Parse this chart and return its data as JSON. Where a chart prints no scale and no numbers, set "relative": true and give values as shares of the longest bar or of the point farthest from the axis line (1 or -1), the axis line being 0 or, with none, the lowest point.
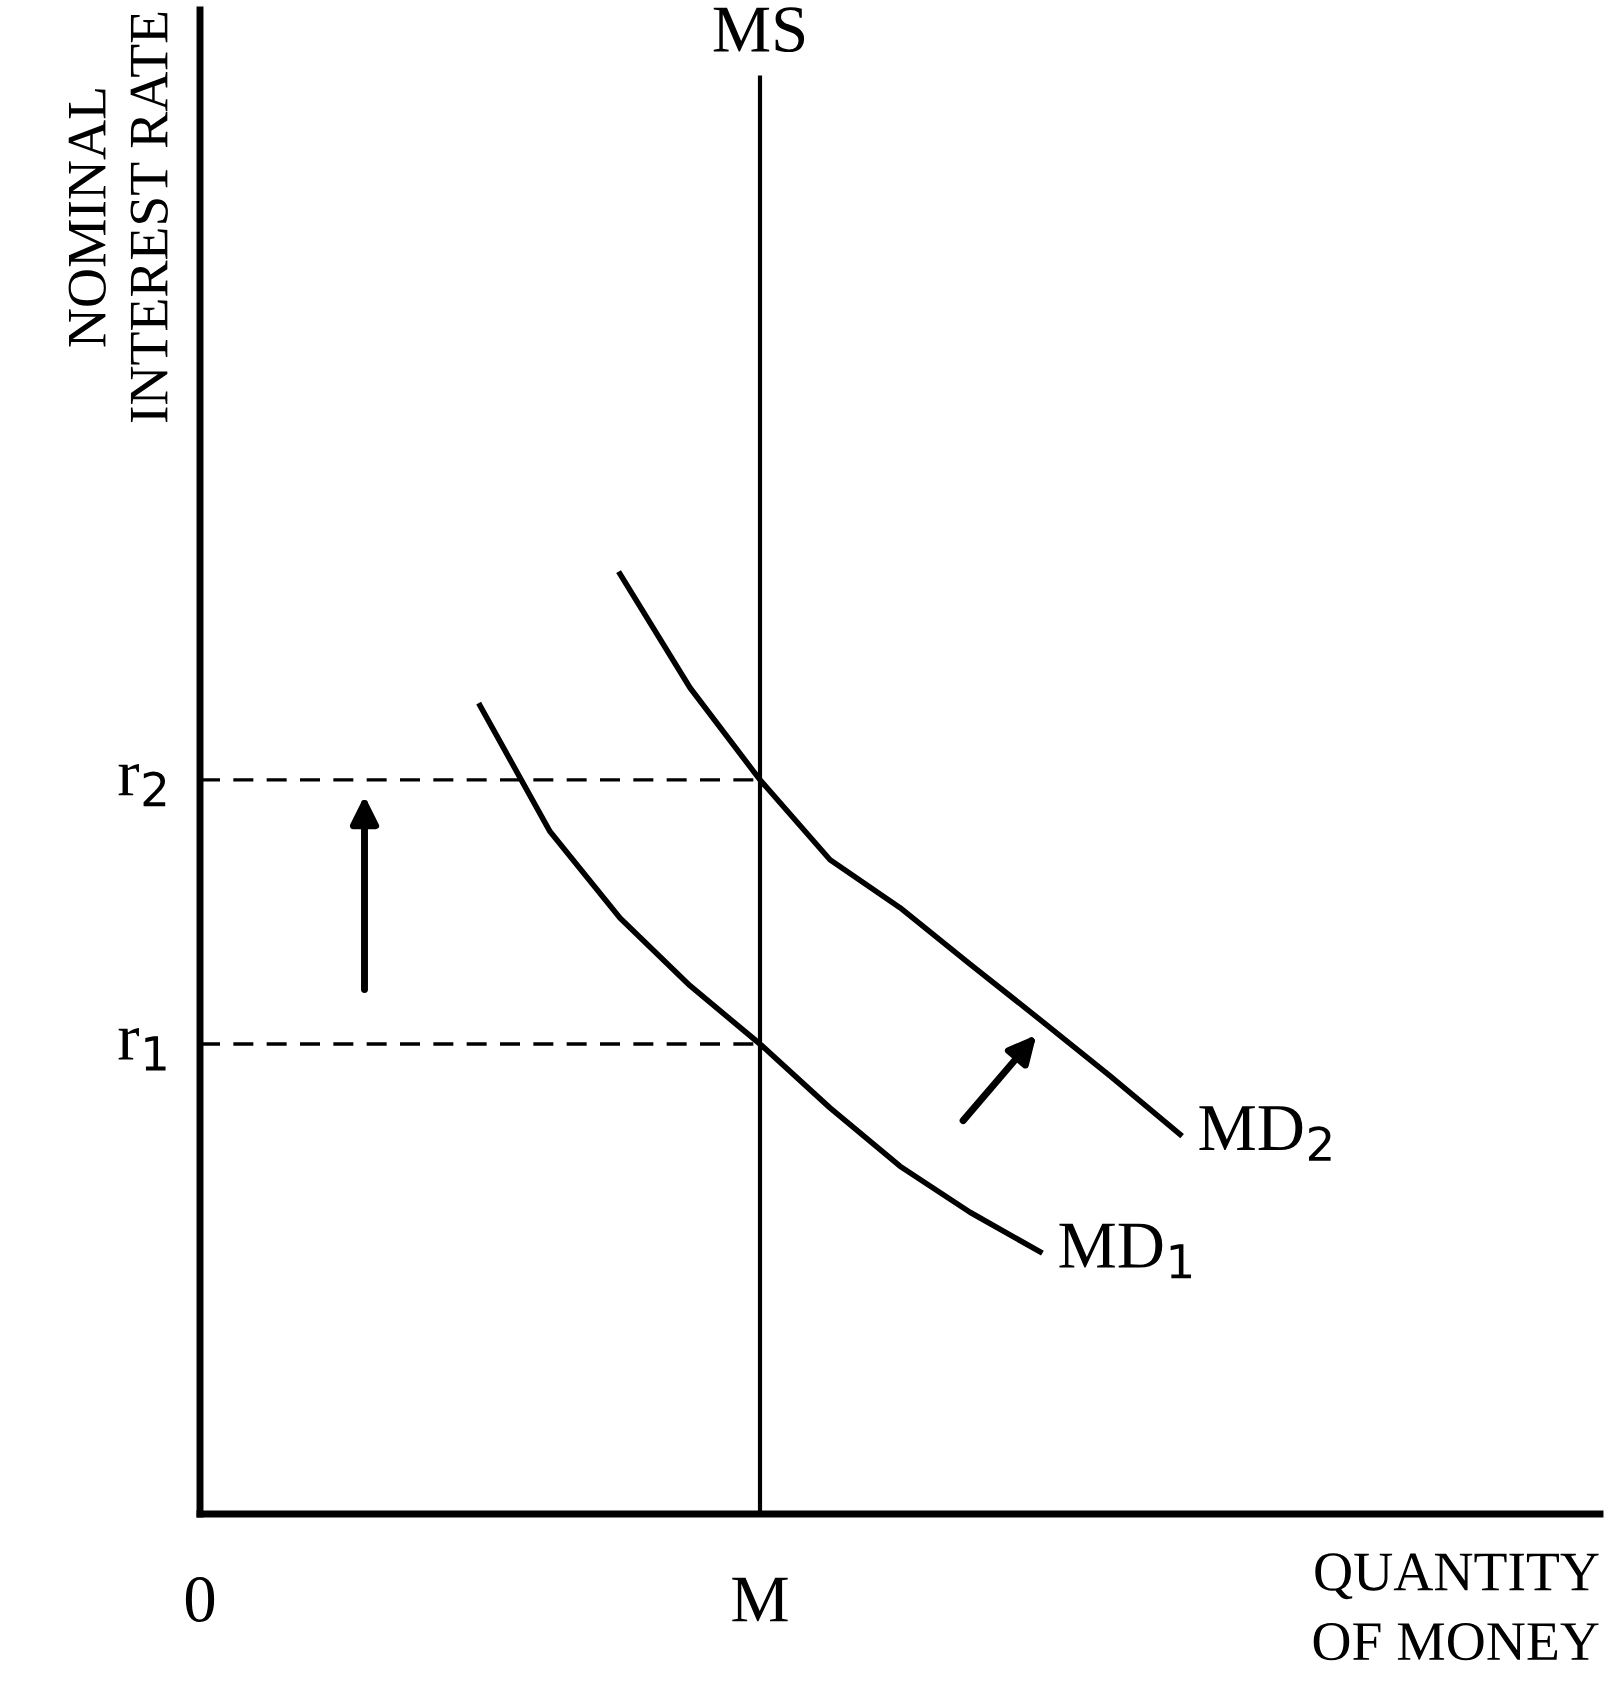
{
  "chart_data": {
    "type": "line",
    "relative": true,
    "xlabel": "QUANTITY\nOF MONEY",
    "ylabel": "NOMINAL\nINTEREST RATE",
    "categories": [
      "0",
      null,
      null,
      null,
      null,
      null,
      null,
      null,
      "M",
      null,
      null,
      null,
      null,
      null,
      null,
      null,
      null,
      null,
      null,
      null
    ],
    "series": [
      {
        "name": "MD$_{1}$",
        "color": "#000000",
        "values": [
          null,
          null,
          null,
          null,
          0.86,
          0.726,
          0.634,
          0.562,
          0.5,
          0.432,
          0.37,
          0.321,
          0.279,
          null,
          null,
          null,
          null,
          null,
          null,
          null
        ]
      },
      {
        "name": "MD$_{2}$",
        "color": "#000000",
        "values": [
          null,
          null,
          null,
          null,
          null,
          null,
          1.0,
          0.879,
          0.781,
          0.696,
          0.645,
          0.585,
          0.526,
          0.466,
          0.404,
          null,
          null,
          null,
          null,
          null
        ]
      }
    ],
    "ref_lines": [
      {
        "axis": "x",
        "value": "M",
        "label": "MS",
        "color": "#000000",
        "line_style": "solid"
      },
      {
        "axis": "y",
        "value": 0.781,
        "label": "r$_{2}$",
        "color": "#000000",
        "line_style": "dashed"
      },
      {
        "axis": "y",
        "value": 0.5,
        "label": "r$_{1}$",
        "color": "#000000",
        "line_style": "dashed"
      }
    ],
    "line_style": "solid",
    "marker": "none"
  }
}
